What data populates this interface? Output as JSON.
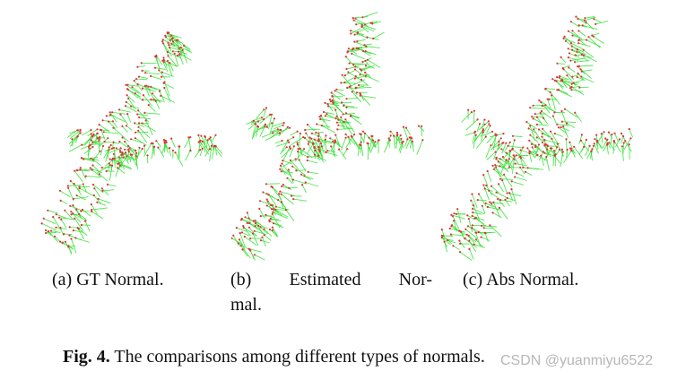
{
  "subfigures": [
    {
      "caption": "(a) GT Normal."
    },
    {
      "caption_line1": "(b) Estimated Nor-",
      "caption_line2": "mal."
    },
    {
      "caption": "(c) Abs Normal."
    }
  ],
  "figure": {
    "label": "Fig. 4.",
    "caption": "The comparisons among different types of normals."
  },
  "watermark": "CSDN @yuanmiyu6522",
  "colors": {
    "normals": "#33e033",
    "points": "#e0303a"
  }
}
